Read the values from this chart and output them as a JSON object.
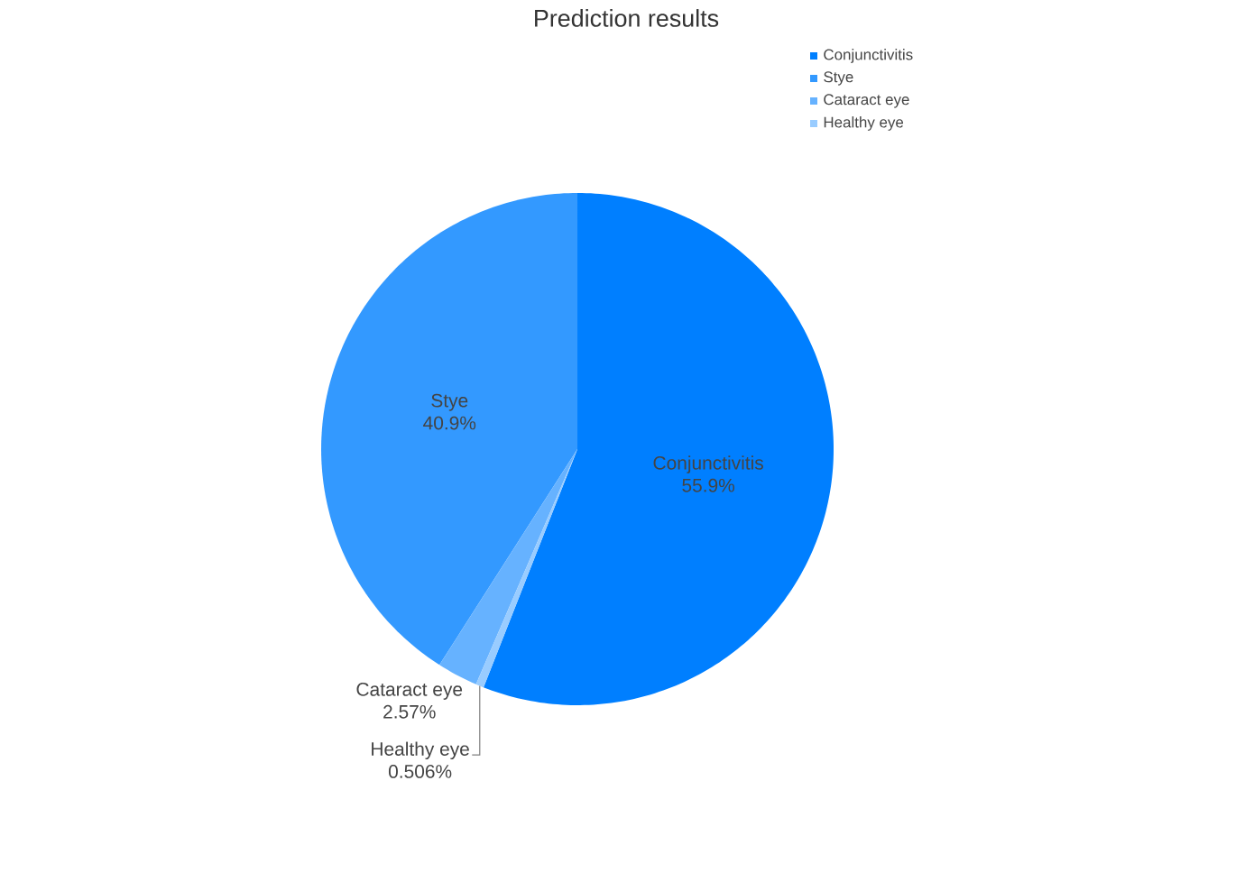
{
  "chart_data": {
    "type": "pie",
    "title": "Prediction results",
    "categories": [
      "Conjunctivitis",
      "Stye",
      "Cataract eye",
      "Healthy eye"
    ],
    "values": [
      55.9,
      40.9,
      2.57,
      0.506
    ],
    "value_labels": [
      "55.9%",
      "40.9%",
      "2.57%",
      "0.506%"
    ],
    "colors": [
      "#007fff",
      "#3399ff",
      "#66b2ff",
      "#99ccff"
    ],
    "legend": "top right"
  }
}
